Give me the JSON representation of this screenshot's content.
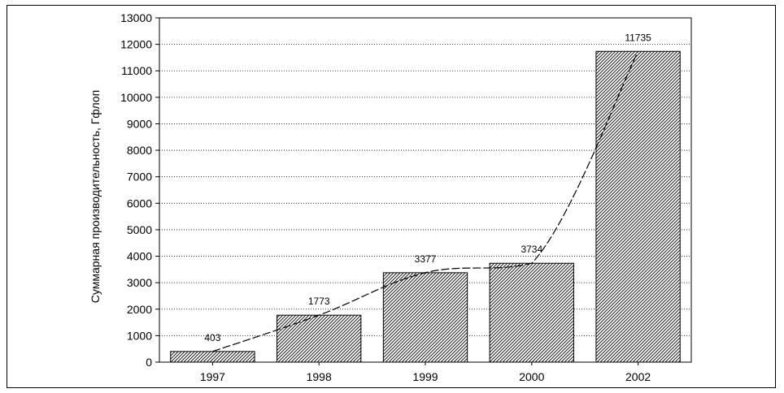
{
  "chart_data": {
    "type": "bar",
    "title": "",
    "xlabel": "",
    "ylabel": "Суммарная производительность, Гфлоп",
    "categories": [
      "1997",
      "1998",
      "1999",
      "2000",
      "2002"
    ],
    "series": [
      {
        "values": [
          403,
          1773,
          3377,
          3734,
          11735
        ]
      }
    ],
    "data_labels": [
      "403",
      "1773",
      "3377",
      "3734",
      "11735"
    ],
    "ylim": [
      0,
      13000
    ],
    "yticks": [
      "0",
      "1000",
      "2000",
      "3000",
      "4000",
      "5000",
      "6000",
      "7000",
      "8000",
      "9000",
      "10000",
      "11000",
      "12000",
      "13000"
    ],
    "grid": true,
    "bar_fill": "diagonal-hatch",
    "trendline": "exponential",
    "colors": {
      "bar_hatch": "#000000",
      "grid": "#000000",
      "trend": "#000000"
    }
  }
}
